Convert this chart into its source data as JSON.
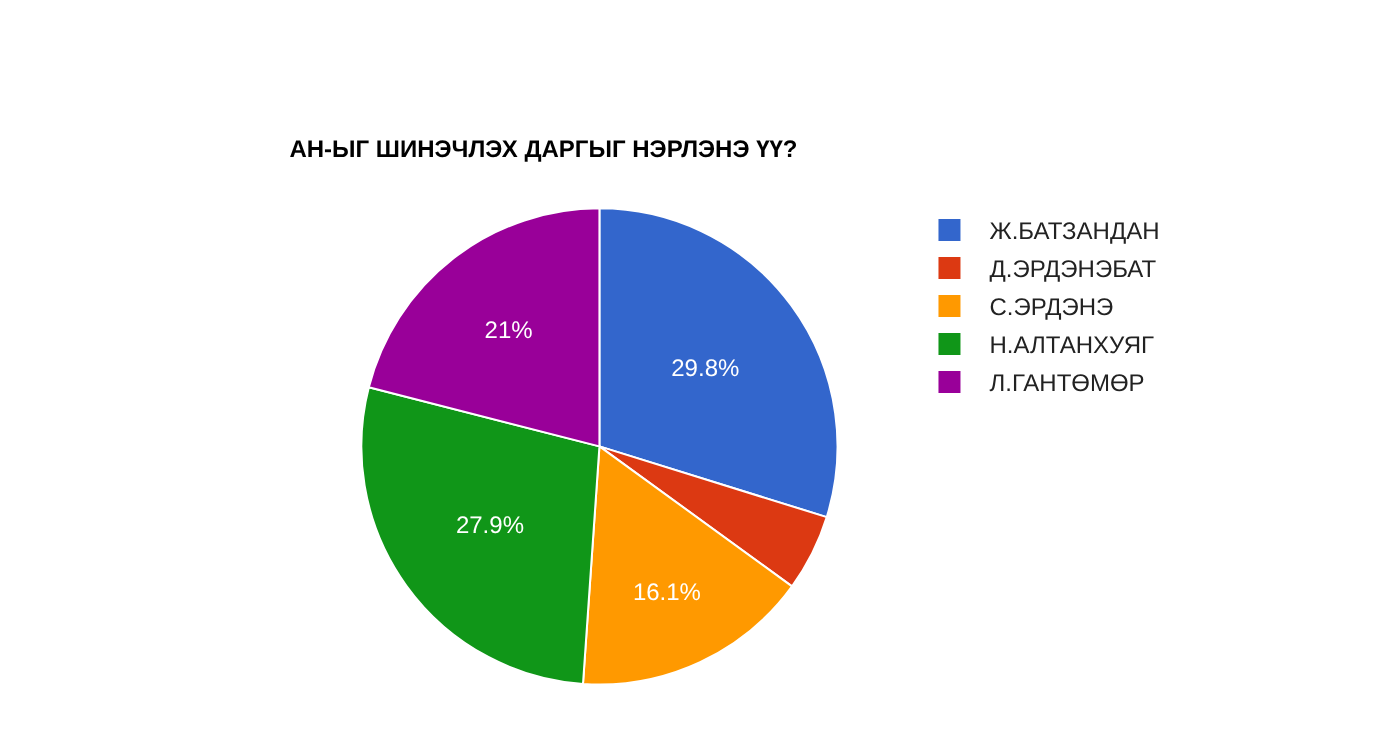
{
  "chart_data": {
    "type": "pie",
    "title": "АН-ЫГ ШИНЭЧЛЭХ ДАРГЫГ НЭРЛЭНЭ ҮҮ?",
    "categories": [
      "Ж.БАТЗАНДАН",
      "Д.ЭРДЭНЭБАТ",
      "С.ЭРДЭНЭ",
      "Н.АЛТАНХУЯГ",
      "Л.ГАНТӨМӨР"
    ],
    "values": [
      29.8,
      5.2,
      16.1,
      27.9,
      21
    ],
    "value_labels": [
      "29.8%",
      null,
      "16.1%",
      "27.9%",
      "21%"
    ],
    "colors": [
      "#3366cc",
      "#dc3912",
      "#ff9900",
      "#109618",
      "#990099"
    ],
    "legend": "right"
  }
}
